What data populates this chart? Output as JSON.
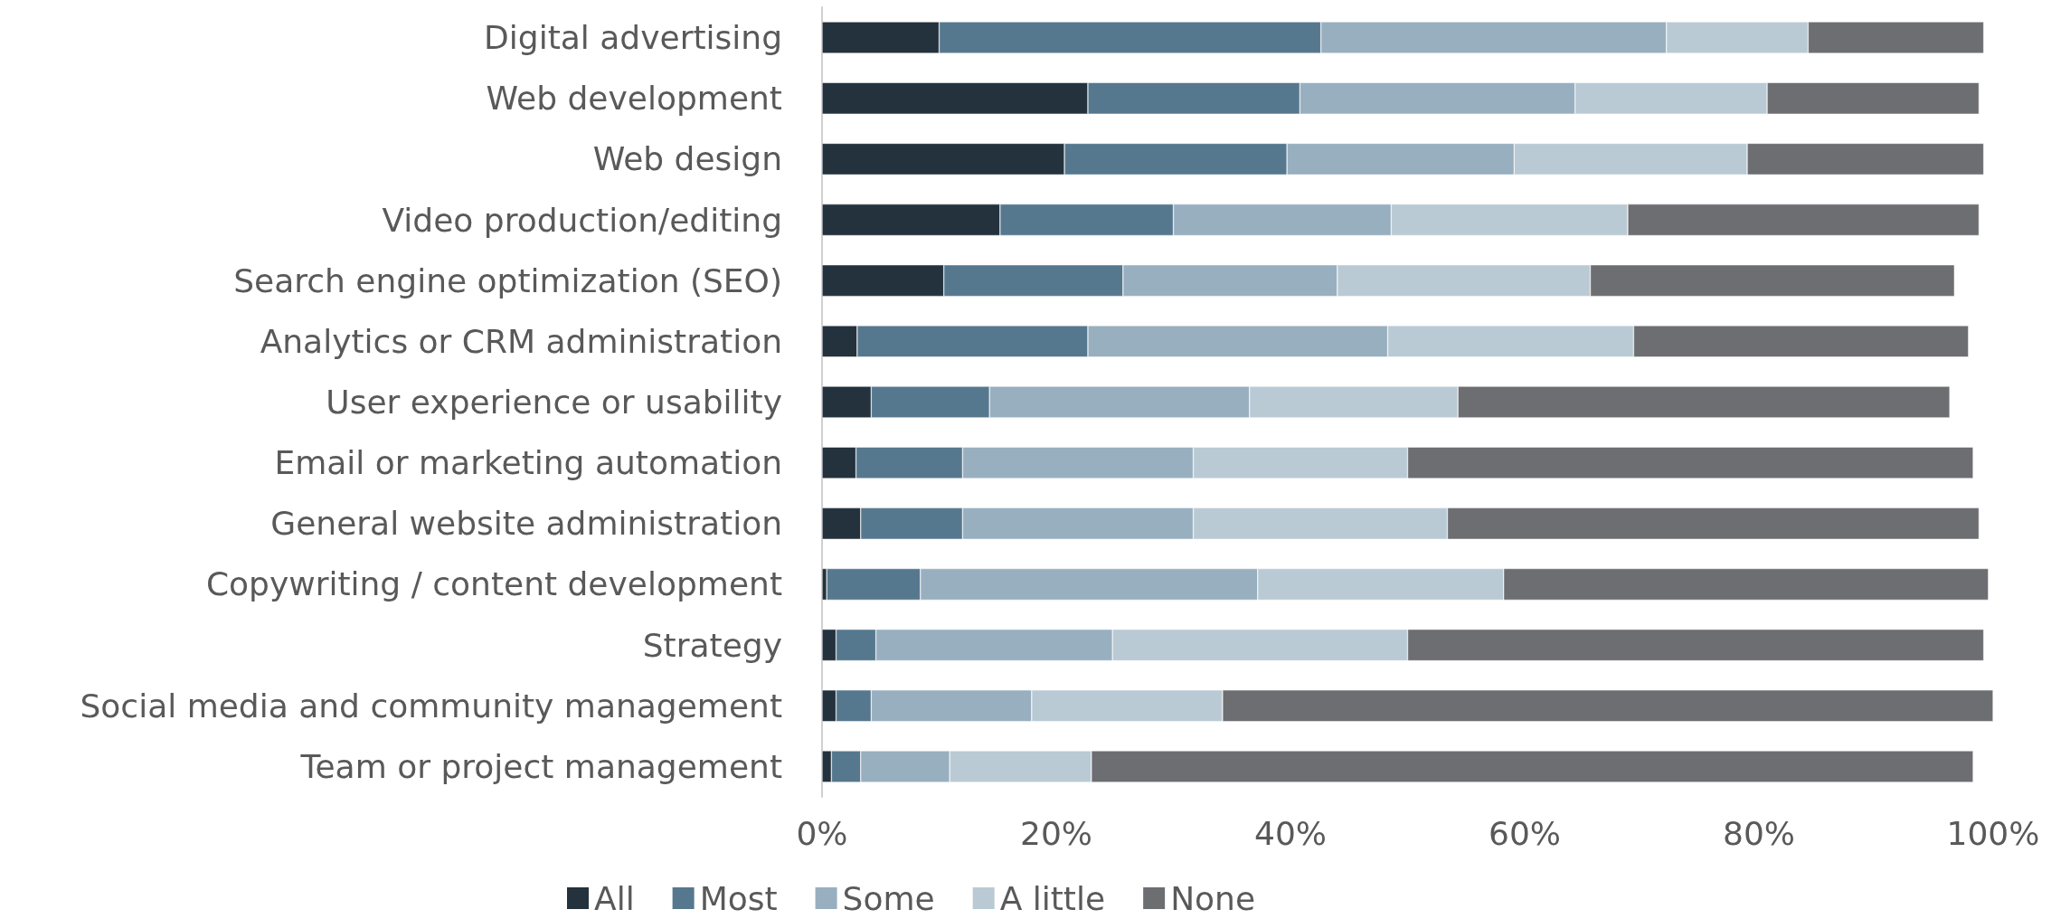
{
  "chart_data": {
    "type": "bar",
    "orientation": "horizontal",
    "stacked": true,
    "categories": [
      "Digital advertising",
      "Web development",
      "Web design",
      "Video production/editing",
      "Search engine optimization (SEO)",
      "Analytics or CRM administration",
      "User experience or usability",
      "Email or marketing automation",
      "General website administration",
      "Copywriting / content development",
      "Strategy",
      "Social media and community management",
      "Team or project management"
    ],
    "series": [
      {
        "name": "All",
        "color": "#24323d",
        "values": [
          10.0,
          22.7,
          20.7,
          15.2,
          10.4,
          3.0,
          4.2,
          2.9,
          3.3,
          0.4,
          1.2,
          1.2,
          0.8
        ]
      },
      {
        "name": "Most",
        "color": "#56788f",
        "values": [
          32.6,
          18.1,
          19.0,
          14.8,
          15.3,
          19.7,
          10.1,
          9.1,
          8.7,
          8.0,
          3.4,
          3.0,
          2.5
        ]
      },
      {
        "name": "Some",
        "color": "#98afc0",
        "values": [
          29.5,
          23.5,
          19.4,
          18.6,
          18.3,
          25.6,
          22.2,
          19.7,
          19.7,
          28.8,
          20.2,
          13.7,
          7.6
        ]
      },
      {
        "name": "A little",
        "color": "#bacad4",
        "values": [
          12.1,
          16.4,
          19.9,
          20.2,
          21.6,
          21.0,
          17.8,
          18.3,
          21.7,
          21.0,
          25.2,
          16.3,
          12.1
        ]
      },
      {
        "name": "None",
        "color": "#6d6e72",
        "values": [
          15.0,
          18.1,
          20.2,
          30.0,
          31.1,
          28.6,
          42.0,
          48.3,
          45.4,
          41.4,
          49.2,
          65.8,
          75.3
        ]
      }
    ],
    "xlim": [
      0,
      100
    ],
    "xticks": [
      {
        "value": 0,
        "label": "0%"
      },
      {
        "value": 20,
        "label": "20%"
      },
      {
        "value": 40,
        "label": "40%"
      },
      {
        "value": 60,
        "label": "60%"
      },
      {
        "value": 80,
        "label": "80%"
      },
      {
        "value": 100,
        "label": "100%"
      }
    ],
    "grid": false,
    "legend": "bottom"
  }
}
